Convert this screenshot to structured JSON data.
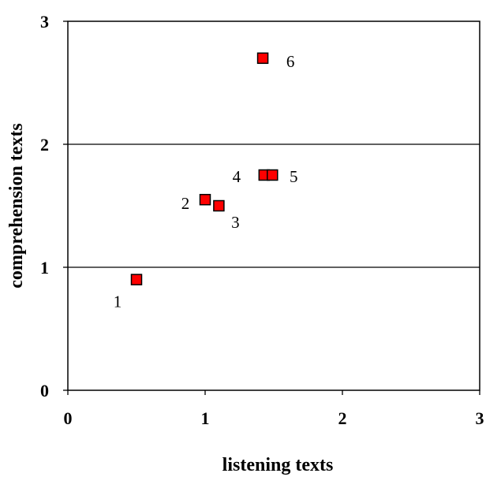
{
  "chart_data": {
    "type": "scatter",
    "xlabel": "listening texts",
    "ylabel": "comprehension texts",
    "xlim": [
      0,
      3
    ],
    "ylim": [
      0,
      3
    ],
    "x_ticks": [
      "0",
      "1",
      "2",
      "3"
    ],
    "y_ticks": [
      "0",
      "1",
      "2",
      "3"
    ],
    "grid": "horizontal",
    "marker_color": "#ff0000",
    "marker_edge_color": "#000000",
    "points": [
      {
        "label": "1",
        "x": 0.5,
        "y": 0.9
      },
      {
        "label": "2",
        "x": 1.0,
        "y": 1.55
      },
      {
        "label": "3",
        "x": 1.1,
        "y": 1.5
      },
      {
        "label": "4",
        "x": 1.43,
        "y": 1.75
      },
      {
        "label": "5",
        "x": 1.49,
        "y": 1.75
      },
      {
        "label": "6",
        "x": 1.42,
        "y": 2.7
      }
    ]
  }
}
